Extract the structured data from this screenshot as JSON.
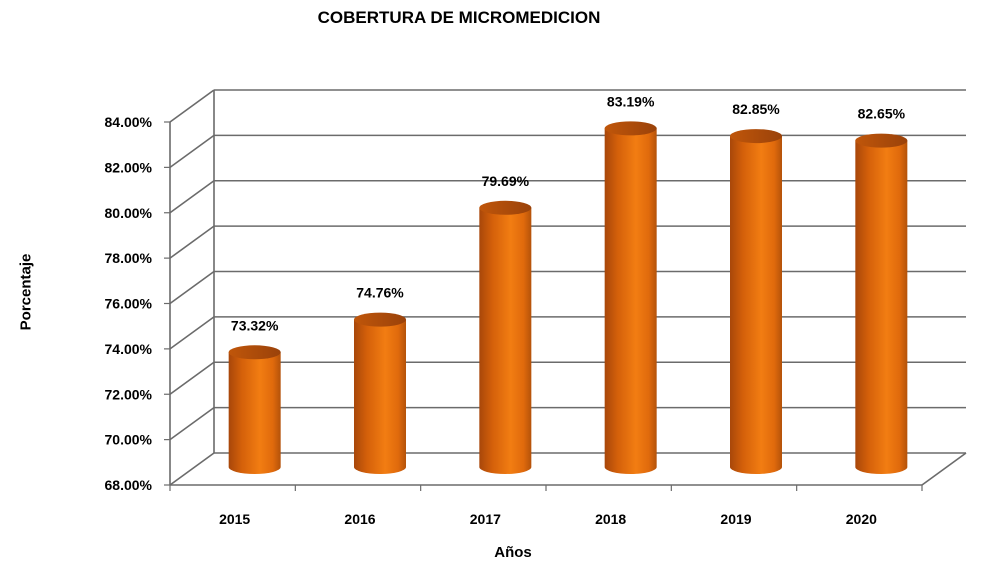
{
  "chart_data": {
    "type": "bar",
    "title": "COBERTURA DE MICROMEDICION",
    "xlabel": "Años",
    "ylabel": "Porcentaje",
    "categories": [
      "2015",
      "2016",
      "2017",
      "2018",
      "2019",
      "2020"
    ],
    "values": [
      73.32,
      74.76,
      79.69,
      83.19,
      82.85,
      82.65
    ],
    "data_labels": [
      "73.32%",
      "74.76%",
      "79.69%",
      "83.19%",
      "82.85%",
      "82.65%"
    ],
    "ylim": [
      68,
      84
    ],
    "yticks": [
      "68.00%",
      "70.00%",
      "72.00%",
      "74.00%",
      "76.00%",
      "78.00%",
      "80.00%",
      "82.00%",
      "84.00%"
    ],
    "grid": true,
    "legend": "none",
    "bar_color": "#E8720C"
  }
}
